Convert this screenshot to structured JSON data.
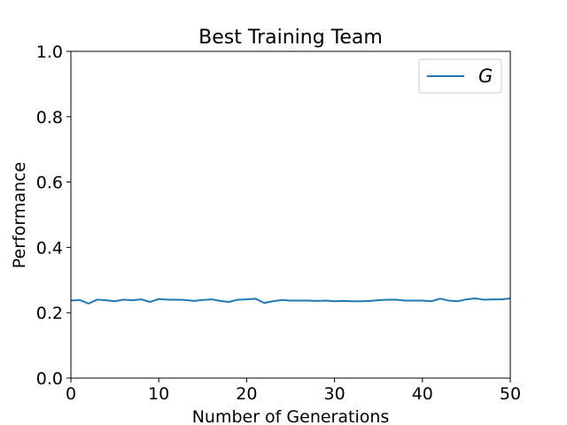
{
  "chart_data": {
    "type": "line",
    "title": "Best Training Team",
    "xlabel": "Number of Generations",
    "ylabel": "Performance",
    "xlim": [
      0,
      50
    ],
    "ylim": [
      0,
      1.0
    ],
    "xticks": [
      0,
      10,
      20,
      30,
      40,
      50
    ],
    "xtick_labels": [
      "0",
      "10",
      "20",
      "30",
      "40",
      "50"
    ],
    "yticks": [
      0.0,
      0.2,
      0.4,
      0.6,
      0.8,
      1.0
    ],
    "ytick_labels": [
      "0.0",
      "0.2",
      "0.4",
      "0.6",
      "0.8",
      "1.0"
    ],
    "grid": false,
    "legend_position": "top-right",
    "series": [
      {
        "name": "G",
        "color": "#1f77b4",
        "x": [
          0,
          1,
          2,
          3,
          4,
          5,
          6,
          7,
          8,
          9,
          10,
          11,
          12,
          13,
          14,
          15,
          16,
          17,
          18,
          19,
          20,
          21,
          22,
          23,
          24,
          25,
          26,
          27,
          28,
          29,
          30,
          31,
          32,
          33,
          34,
          35,
          36,
          37,
          38,
          39,
          40,
          41,
          42,
          43,
          44,
          45,
          46,
          47,
          48,
          49,
          50
        ],
        "y": [
          0.237,
          0.239,
          0.228,
          0.24,
          0.238,
          0.235,
          0.24,
          0.238,
          0.241,
          0.233,
          0.242,
          0.24,
          0.24,
          0.239,
          0.236,
          0.239,
          0.241,
          0.236,
          0.233,
          0.24,
          0.241,
          0.243,
          0.23,
          0.235,
          0.239,
          0.237,
          0.237,
          0.237,
          0.236,
          0.237,
          0.235,
          0.236,
          0.235,
          0.235,
          0.236,
          0.238,
          0.24,
          0.24,
          0.237,
          0.237,
          0.237,
          0.235,
          0.243,
          0.237,
          0.235,
          0.241,
          0.244,
          0.24,
          0.241,
          0.241,
          0.244
        ]
      }
    ]
  }
}
